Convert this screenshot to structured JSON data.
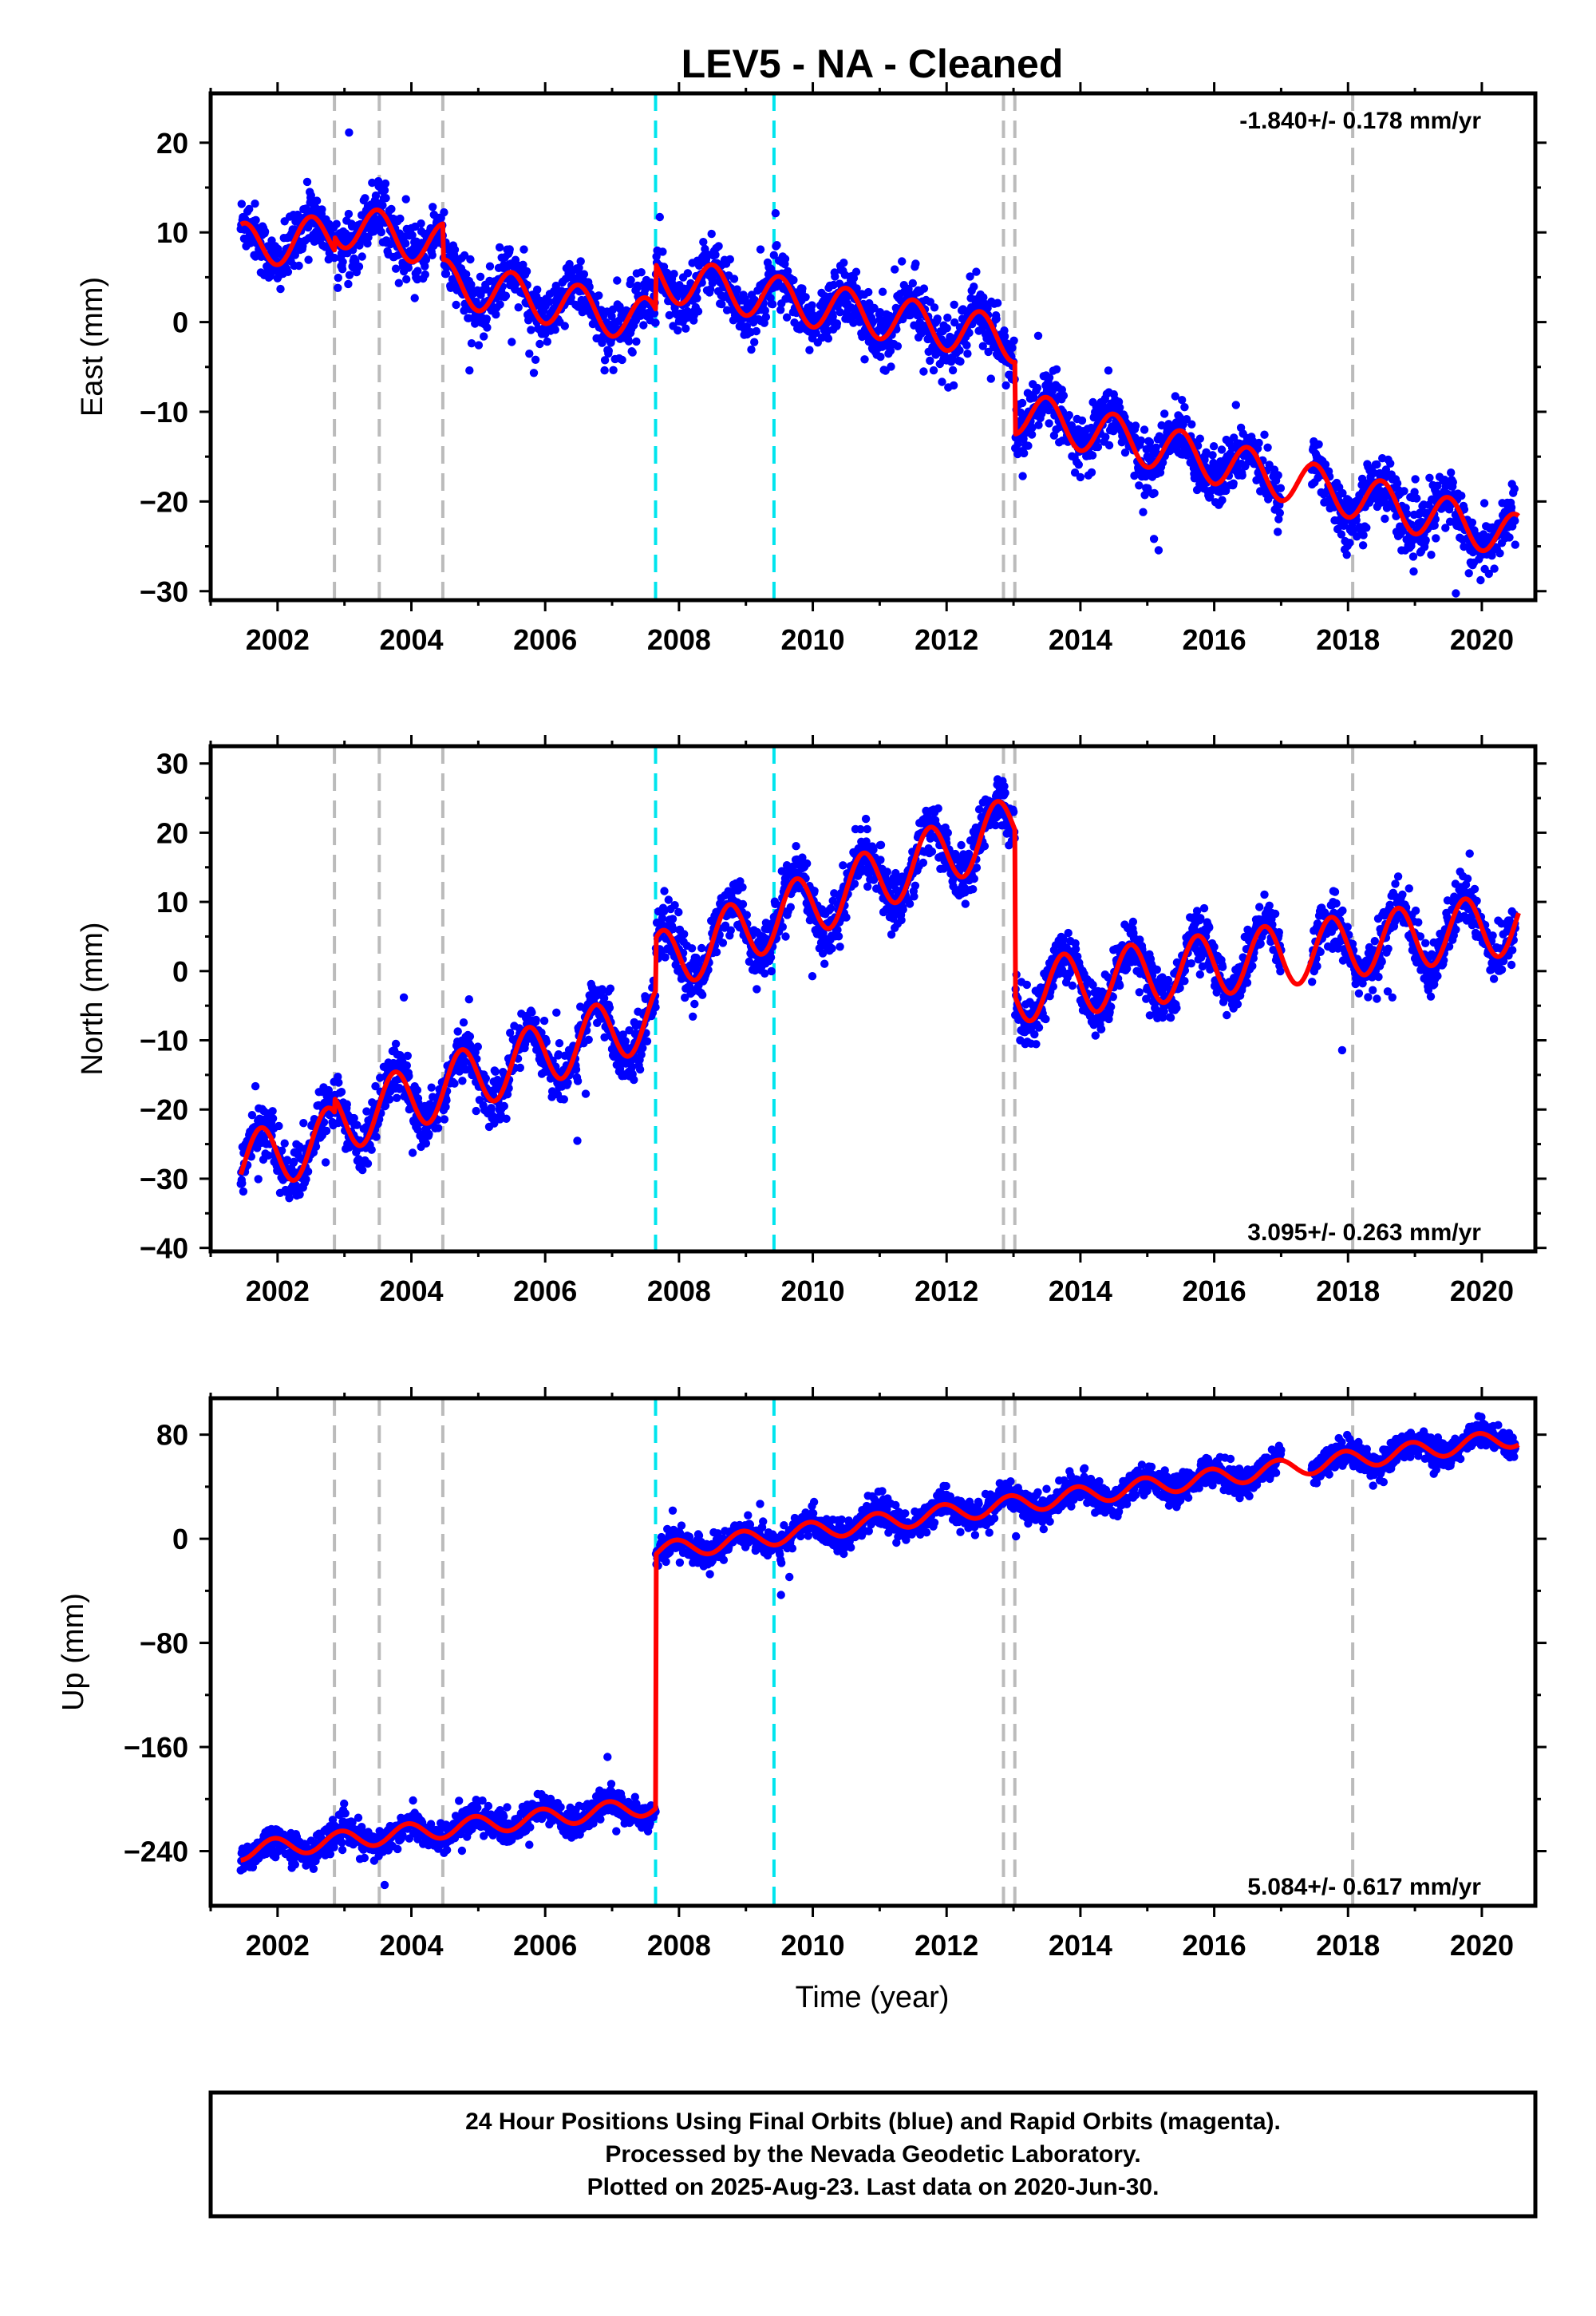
{
  "figure": {
    "title": "LEV5  - NA - Cleaned",
    "xlabel": "Time (year)"
  },
  "colors": {
    "final_orbits": "#0000ff",
    "model": "#ff0000",
    "gray_marker": "#bbbbbb",
    "cyan_marker": "#00e5ee"
  },
  "footer": {
    "line1": "24 Hour Positions Using Final Orbits (blue) and Rapid Orbits (magenta).",
    "line2": "Processed by the Nevada Geodetic Laboratory.",
    "line3": "Plotted on 2025-Aug-23. Last data on 2020-Jun-30."
  },
  "chart_data": [
    {
      "type": "scatter",
      "component": "east",
      "ylabel": "East (mm)",
      "rate": "-1.840+/- 0.178 mm/yr",
      "rate_position": "top-right",
      "xlim": [
        2001.0,
        2020.8
      ],
      "ylim": [
        -31,
        25.5
      ],
      "xticks": [
        2002,
        2004,
        2006,
        2008,
        2010,
        2012,
        2014,
        2016,
        2018,
        2020
      ],
      "xtick_labels": [
        "2002",
        "2004",
        "2006",
        "2008",
        "2010",
        "2012",
        "2014",
        "2016",
        "2018",
        "2020"
      ],
      "yticks": [
        20,
        10,
        0,
        -10,
        -20,
        -30
      ],
      "ytick_labels": [
        "20",
        "10",
        "0",
        "−10",
        "−20",
        "−30"
      ],
      "gray_markers": [
        2002.85,
        2003.52,
        2004.47,
        2012.85,
        2013.02,
        2018.07
      ],
      "cyan_markers": [
        2007.65,
        2009.42
      ],
      "data_start": 2001.45,
      "data_end": 2020.5,
      "gaps": [
        [
          2017.0,
          2017.45
        ]
      ],
      "segments": [
        {
          "t0": 2001.45,
          "t1": 2002.85,
          "c0": 8.5,
          "c1": 9.5
        },
        {
          "t0": 2002.85,
          "t1": 2004.47,
          "c0": 11.0,
          "c1": 8.5
        },
        {
          "t0": 2004.47,
          "t1": 2007.65,
          "c0": 4.5,
          "c1": 0.0
        },
        {
          "t0": 2007.65,
          "t1": 2013.02,
          "c0": 5.0,
          "c1": -2.0
        },
        {
          "t0": 2013.02,
          "t1": 2020.55,
          "c0": -10.0,
          "c1": -24.0
        }
      ],
      "seasonal_amplitude": 2.5,
      "seasonal_phase": 0.75,
      "noise": 1.6
    },
    {
      "type": "scatter",
      "component": "north",
      "ylabel": "North (mm)",
      "rate": "3.095+/- 0.263 mm/yr",
      "rate_position": "bottom-right",
      "xlim": [
        2001.0,
        2020.8
      ],
      "ylim": [
        -40.5,
        32.5
      ],
      "xticks": [
        2002,
        2004,
        2006,
        2008,
        2010,
        2012,
        2014,
        2016,
        2018,
        2020
      ],
      "xtick_labels": [
        "2002",
        "2004",
        "2006",
        "2008",
        "2010",
        "2012",
        "2014",
        "2016",
        "2018",
        "2020"
      ],
      "yticks": [
        30,
        20,
        10,
        0,
        -10,
        -20,
        -30,
        -40
      ],
      "ytick_labels": [
        "30",
        "20",
        "10",
        "0",
        "−10",
        "−20",
        "−30",
        "−40"
      ],
      "gray_markers": [
        2002.85,
        2003.52,
        2004.47,
        2012.85,
        2013.02,
        2018.07
      ],
      "cyan_markers": [
        2007.65,
        2009.42
      ],
      "data_start": 2001.45,
      "data_end": 2020.5,
      "gaps": [
        [
          2017.0,
          2017.45
        ]
      ],
      "segments": [
        {
          "t0": 2001.45,
          "t1": 2002.85,
          "c0": -28.0,
          "c1": -24.0
        },
        {
          "t0": 2002.85,
          "t1": 2007.65,
          "c0": -22.0,
          "c1": -6.5
        },
        {
          "t0": 2007.65,
          "t1": 2013.02,
          "c0": 1.0,
          "c1": 21.0
        },
        {
          "t0": 2013.02,
          "t1": 2020.55,
          "c0": -3.0,
          "c1": 7.0
        }
      ],
      "seasonal_amplitude": 4.5,
      "seasonal_phase": 0.5,
      "noise": 1.9
    },
    {
      "type": "scatter",
      "component": "up",
      "ylabel": "Up (mm)",
      "rate": "5.084+/- 0.617 mm/yr",
      "rate_position": "bottom-right",
      "xlim": [
        2001.0,
        2020.8
      ],
      "ylim": [
        -282,
        108
      ],
      "xticks": [
        2002,
        2004,
        2006,
        2008,
        2010,
        2012,
        2014,
        2016,
        2018,
        2020
      ],
      "xtick_labels": [
        "2002",
        "2004",
        "2006",
        "2008",
        "2010",
        "2012",
        "2014",
        "2016",
        "2018",
        "2020"
      ],
      "yticks": [
        80,
        0,
        -80,
        -160,
        -240
      ],
      "ytick_labels": [
        "80",
        "0",
        "−80",
        "−160",
        "−240"
      ],
      "gray_markers": [
        2002.85,
        2003.52,
        2004.47,
        2012.85,
        2013.02,
        2018.07
      ],
      "cyan_markers": [
        2007.65,
        2009.42
      ],
      "data_start": 2001.45,
      "data_end": 2020.5,
      "gaps": [
        [
          2017.0,
          2017.45
        ]
      ],
      "segments": [
        {
          "t0": 2001.45,
          "t1": 2007.65,
          "c0": -240.0,
          "c1": -205.0
        },
        {
          "t0": 2007.65,
          "t1": 2020.55,
          "c0": -10.0,
          "c1": 78.0
        }
      ],
      "seasonal_amplitude": 7.0,
      "seasonal_phase": 0.3,
      "noise": 5.5
    }
  ]
}
